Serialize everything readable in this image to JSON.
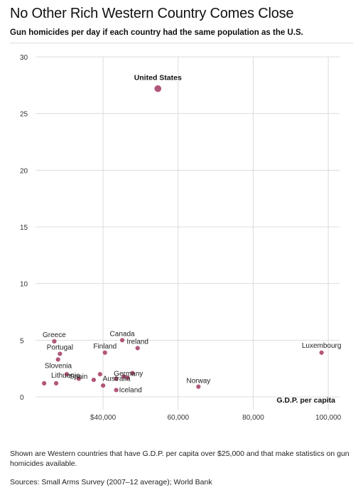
{
  "title": "No Other Rich Western Country Comes Close",
  "subtitle": "Gun homicides per day if each country had the same population as the U.S.",
  "note": "Shown are Western countries that have G.D.P. per capita over $25,000 and that make statistics on gun homicides available.",
  "source": "Sources:  Small Arms Survey (2007–12 average); World Bank",
  "chart_data": {
    "type": "scatter",
    "xlabel": "G.D.P. per capita",
    "ylabel": "",
    "xlim": [
      22000,
      103000
    ],
    "ylim": [
      0,
      30
    ],
    "xticks": [
      40000,
      60000,
      80000,
      100000
    ],
    "xtick_labels": [
      "$40,000",
      "60,000",
      "80,000",
      "100,000"
    ],
    "yticks": [
      0,
      5,
      10,
      15,
      20,
      25,
      30
    ],
    "grid": true,
    "point_color": "#b2567a",
    "points": [
      {
        "label": "United States",
        "x": 54600,
        "y": 27.2,
        "emphasis": true
      },
      {
        "label": "Luxembourg",
        "x": 98200,
        "y": 3.9
      },
      {
        "label": "Norway",
        "x": 65400,
        "y": 0.9
      },
      {
        "label": "Greece",
        "x": 27000,
        "y": 4.9
      },
      {
        "label": "Canada",
        "x": 45100,
        "y": 5.0
      },
      {
        "label": "Ireland",
        "x": 49200,
        "y": 4.3
      },
      {
        "label": "Finland",
        "x": 40500,
        "y": 3.9
      },
      {
        "label": "Portugal",
        "x": 28500,
        "y": 3.8
      },
      {
        "label": "Slovenia",
        "x": 28000,
        "y": 3.3
      },
      {
        "label": "Spain",
        "x": 33500,
        "y": 1.6
      },
      {
        "label": "Lithuania",
        "x": 27500,
        "y": 1.2
      },
      {
        "label": "Germany",
        "x": 45500,
        "y": 1.8
      },
      {
        "label": "Australia",
        "x": 43500,
        "y": 1.6
      },
      {
        "label": "Iceland",
        "x": 43500,
        "y": 0.6
      },
      {
        "label": "",
        "x": 24300,
        "y": 1.2
      },
      {
        "label": "",
        "x": 30300,
        "y": 2.0
      },
      {
        "label": "",
        "x": 37500,
        "y": 1.5
      },
      {
        "label": "",
        "x": 39200,
        "y": 2.0
      },
      {
        "label": "",
        "x": 40000,
        "y": 1.0
      },
      {
        "label": "",
        "x": 46500,
        "y": 1.7
      },
      {
        "label": "",
        "x": 47800,
        "y": 2.1
      }
    ]
  }
}
